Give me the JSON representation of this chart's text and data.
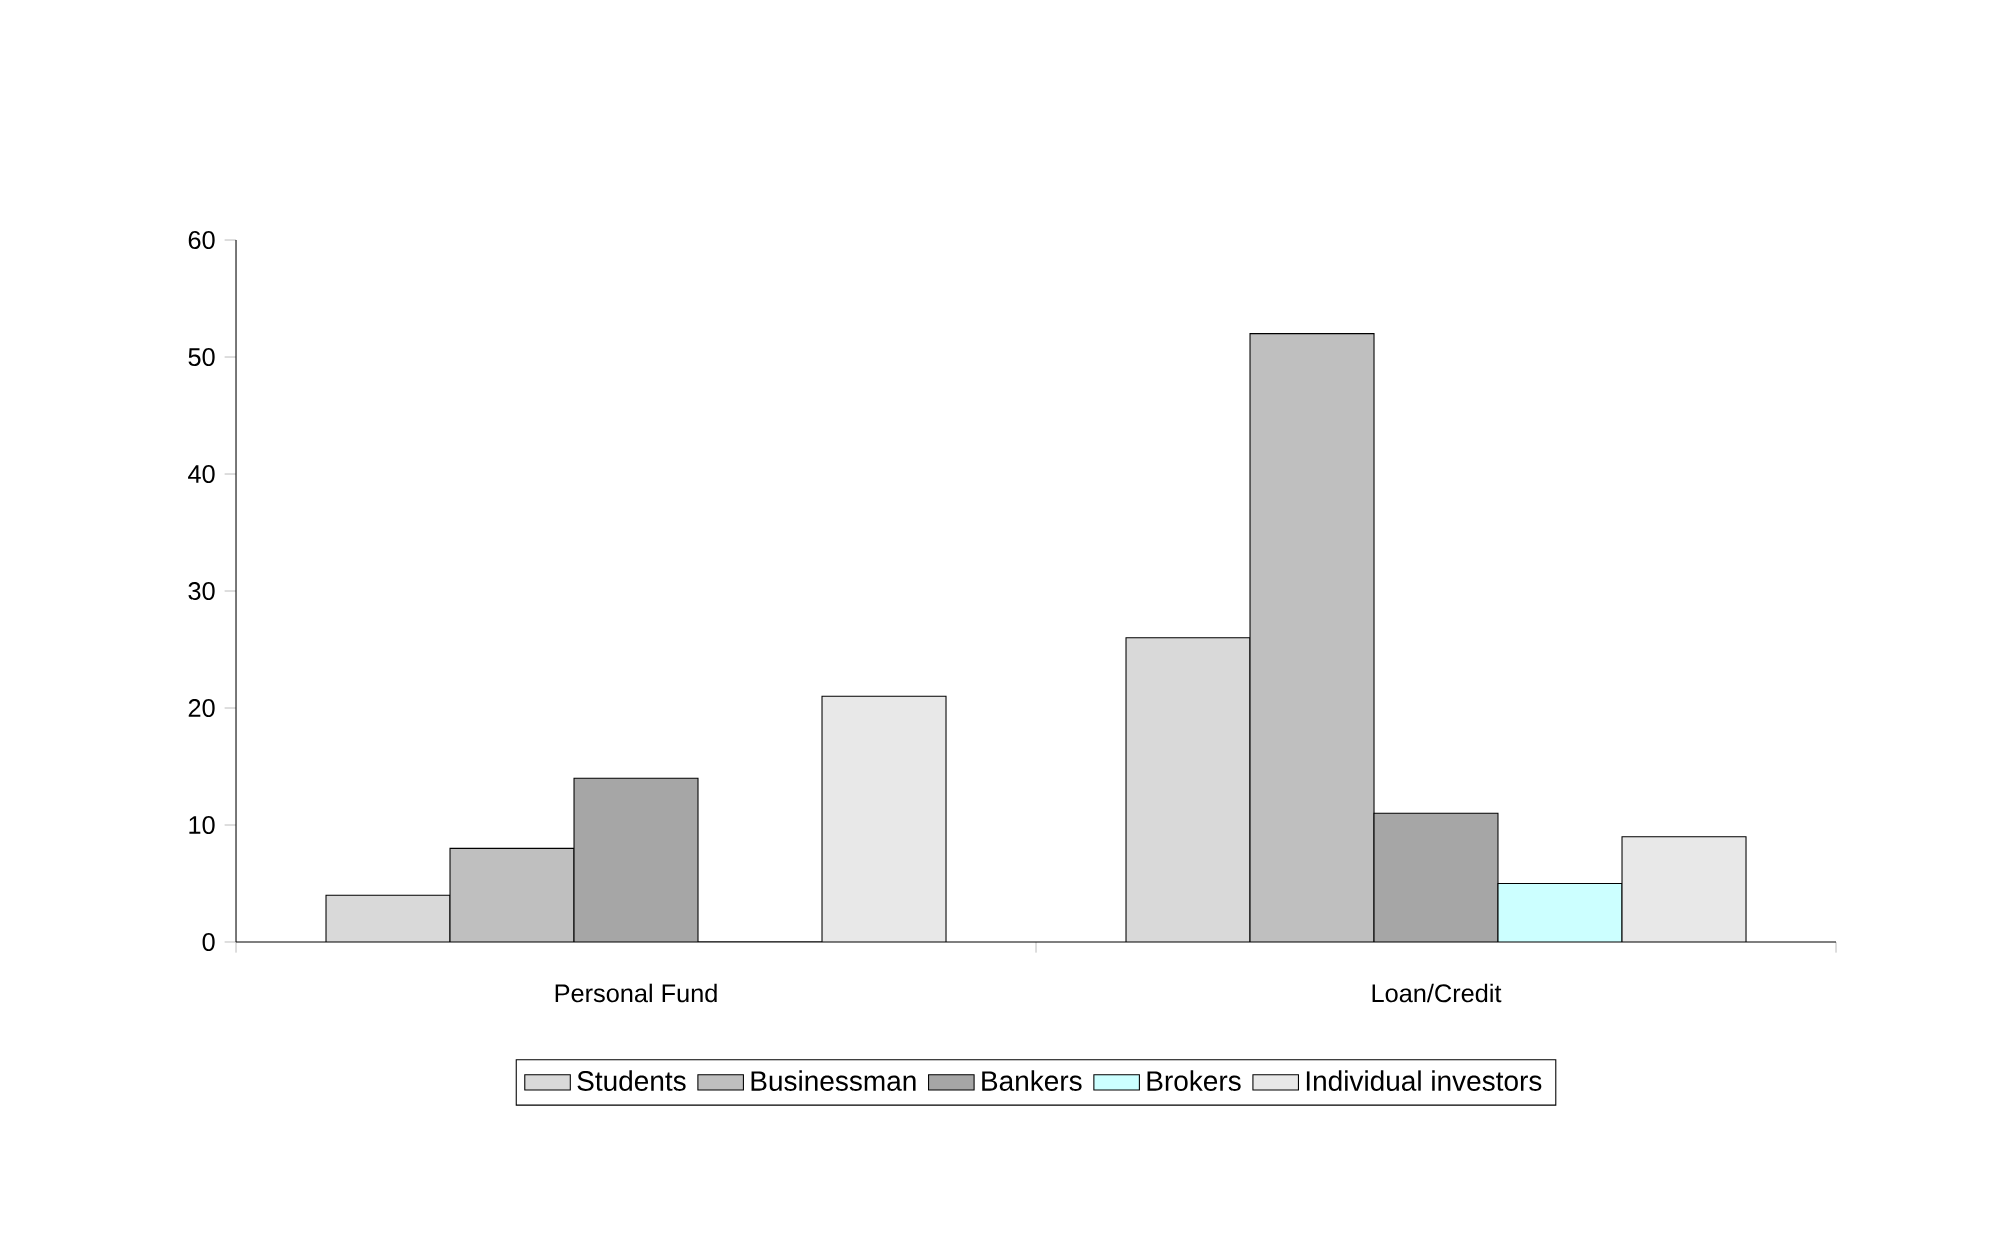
{
  "chart_data": {
    "type": "bar",
    "categories": [
      "Personal Fund",
      "Loan/Credit"
    ],
    "series": [
      {
        "name": "Students",
        "color": "#d9d9d9",
        "values": [
          4,
          26
        ]
      },
      {
        "name": "Businessman",
        "color": "#bfbfbf",
        "values": [
          8,
          52
        ]
      },
      {
        "name": "Bankers",
        "color": "#a6a6a6",
        "values": [
          14,
          11
        ]
      },
      {
        "name": "Brokers",
        "color": "#ccffff",
        "values": [
          0,
          5
        ]
      },
      {
        "name": "Individual investors",
        "color": "#e8e8e8",
        "values": [
          21,
          9
        ]
      }
    ],
    "ylim": [
      0,
      60
    ],
    "yticks": [
      0,
      10,
      20,
      30,
      40,
      50,
      60
    ],
    "grid": false,
    "legend": "bottom"
  }
}
